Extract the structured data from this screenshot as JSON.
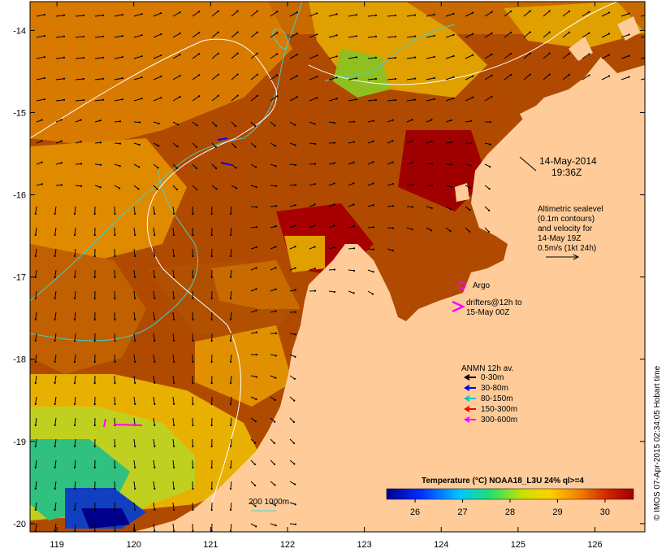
{
  "date_label": {
    "line1": "14-May-2014",
    "line2": "19:36Z"
  },
  "altimetry_note": {
    "lines": [
      "Altimetric sealevel",
      "(0.1m contours)",
      "and velocity for",
      "14-May 19Z",
      "0.5m/s (1kt 24h)"
    ]
  },
  "argo_label": "Argo",
  "drifter_label": {
    "line1": "drifters@12h to",
    "line2": "15-May 00Z"
  },
  "anmn_legend": {
    "title": "ANMN 12h av.",
    "items": [
      {
        "label": "0-30m",
        "color": "#000000"
      },
      {
        "label": "30-80m",
        "color": "#0000ff"
      },
      {
        "label": "80-150m",
        "color": "#00c8c8"
      },
      {
        "label": "150-300m",
        "color": "#ff0000"
      },
      {
        "label": "300-600m",
        "color": "#ff00ff"
      }
    ]
  },
  "colorbar": {
    "title": "Temperature (°C) NOAA18_L3U 24% ql>=4",
    "ticks": [
      "26",
      "27",
      "28",
      "29",
      "30"
    ],
    "range": [
      25.4,
      30.6
    ]
  },
  "depth_legend": "200  1000m",
  "credit": "© IMOS 07-Apr-2015 02:34:05 Hobart time",
  "axes": {
    "lon_ticks": [
      "119",
      "120",
      "121",
      "122",
      "123",
      "124",
      "125",
      "126"
    ],
    "lat_ticks": [
      "-14",
      "-15",
      "-16",
      "-17",
      "-18",
      "-19",
      "-20"
    ],
    "lon_range": [
      118.65,
      126.65
    ],
    "lat_range": [
      -20.1,
      -13.65
    ]
  },
  "colors": {
    "land": "#ffcc99",
    "contour_depth": "#40d0d0",
    "contour_sealevel": "#ffffff",
    "argo": "#ff00ff",
    "drifter": "#ff00ff"
  }
}
